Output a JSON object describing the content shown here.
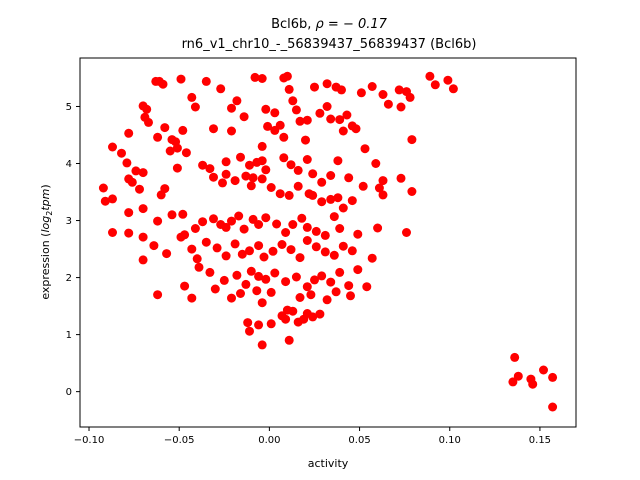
{
  "chart_data": {
    "type": "scatter",
    "title_line1_prefix": "Bcl6b, ",
    "title_line1_rho": "ρ = − 0.17",
    "title_line2": "rn6_v1_chr10_-_56839437_56839437 (Bcl6b)",
    "xlabel": "activity",
    "ylabel_prefix": "expression (",
    "ylabel_math": "log",
    "ylabel_sub": "2",
    "ylabel_math2": "tpm",
    "ylabel_suffix": ")",
    "xlim": [
      -0.105,
      0.17
    ],
    "ylim": [
      -0.62,
      5.85
    ],
    "x_ticks": [
      -0.1,
      -0.05,
      0.0,
      0.05,
      0.1,
      0.15
    ],
    "x_tick_labels": [
      "−0.10",
      "−0.05",
      "0.00",
      "0.05",
      "0.10",
      "0.15"
    ],
    "y_ticks": [
      0,
      1,
      2,
      3,
      4,
      5
    ],
    "y_tick_labels": [
      "0",
      "1",
      "2",
      "3",
      "4",
      "5"
    ],
    "grid": false,
    "marker_color": "#ff0000",
    "points": [
      [
        -0.063,
        5.44
      ],
      [
        -0.061,
        5.44
      ],
      [
        -0.059,
        5.39
      ],
      [
        -0.049,
        5.48
      ],
      [
        -0.035,
        5.44
      ],
      [
        -0.027,
        5.31
      ],
      [
        -0.018,
        5.1
      ],
      [
        -0.008,
        5.51
      ],
      [
        -0.004,
        5.49
      ],
      [
        0.01,
        5.53
      ],
      [
        0.008,
        5.5
      ],
      [
        0.025,
        5.34
      ],
      [
        0.032,
        5.4
      ],
      [
        0.037,
        5.34
      ],
      [
        0.04,
        5.29
      ],
      [
        0.051,
        5.24
      ],
      [
        0.057,
        5.35
      ],
      [
        0.063,
        5.21
      ],
      [
        0.072,
        5.29
      ],
      [
        0.076,
        5.26
      ],
      [
        0.078,
        5.16
      ],
      [
        0.089,
        5.53
      ],
      [
        0.092,
        5.38
      ],
      [
        0.099,
        5.46
      ],
      [
        0.102,
        5.31
      ],
      [
        -0.07,
        5.01
      ],
      [
        -0.068,
        4.95
      ],
      [
        -0.069,
        4.81
      ],
      [
        -0.067,
        4.72
      ],
      [
        -0.058,
        4.63
      ],
      [
        -0.043,
        5.16
      ],
      [
        -0.041,
        4.99
      ],
      [
        -0.021,
        4.97
      ],
      [
        -0.014,
        4.82
      ],
      [
        -0.002,
        4.95
      ],
      [
        0.003,
        4.89
      ],
      [
        0.006,
        4.67
      ],
      [
        0.011,
        5.3
      ],
      [
        0.013,
        5.1
      ],
      [
        0.015,
        4.94
      ],
      [
        0.017,
        4.74
      ],
      [
        0.021,
        4.76
      ],
      [
        0.028,
        4.88
      ],
      [
        0.032,
        5.0
      ],
      [
        0.034,
        4.78
      ],
      [
        0.039,
        4.77
      ],
      [
        0.043,
        4.85
      ],
      [
        0.046,
        4.66
      ],
      [
        0.066,
        5.04
      ],
      [
        0.073,
        4.99
      ],
      [
        -0.078,
        4.53
      ],
      [
        -0.062,
        4.46
      ],
      [
        -0.054,
        4.42
      ],
      [
        -0.052,
        4.38
      ],
      [
        -0.048,
        4.58
      ],
      [
        -0.031,
        4.61
      ],
      [
        -0.021,
        4.57
      ],
      [
        -0.004,
        4.3
      ],
      [
        -0.001,
        4.65
      ],
      [
        0.008,
        4.46
      ],
      [
        0.003,
        4.58
      ],
      [
        0.02,
        4.41
      ],
      [
        0.041,
        4.57
      ],
      [
        0.048,
        4.61
      ],
      [
        0.053,
        4.26
      ],
      [
        0.079,
        4.42
      ],
      [
        -0.087,
        4.29
      ],
      [
        -0.082,
        4.18
      ],
      [
        -0.079,
        4.01
      ],
      [
        -0.074,
        3.87
      ],
      [
        -0.07,
        3.84
      ],
      [
        -0.076,
        3.67
      ],
      [
        -0.055,
        4.22
      ],
      [
        -0.051,
        4.27
      ],
      [
        -0.051,
        3.92
      ],
      [
        -0.046,
        4.19
      ],
      [
        -0.037,
        3.97
      ],
      [
        -0.033,
        3.91
      ],
      [
        -0.024,
        4.03
      ],
      [
        -0.016,
        4.11
      ],
      [
        -0.011,
        3.97
      ],
      [
        -0.007,
        4.02
      ],
      [
        -0.004,
        4.05
      ],
      [
        -0.002,
        3.89
      ],
      [
        0.008,
        4.1
      ],
      [
        0.012,
        3.98
      ],
      [
        0.016,
        3.88
      ],
      [
        0.021,
        4.07
      ],
      [
        0.024,
        3.82
      ],
      [
        0.029,
        3.67
      ],
      [
        0.034,
        3.79
      ],
      [
        0.038,
        4.05
      ],
      [
        0.044,
        3.75
      ],
      [
        0.059,
        4.0
      ],
      [
        0.063,
        3.7
      ],
      [
        0.073,
        3.74
      ],
      [
        -0.092,
        3.57
      ],
      [
        -0.091,
        3.34
      ],
      [
        -0.087,
        3.38
      ],
      [
        -0.078,
        3.73
      ],
      [
        -0.078,
        3.14
      ],
      [
        -0.072,
        3.55
      ],
      [
        -0.07,
        3.21
      ],
      [
        -0.06,
        3.45
      ],
      [
        -0.058,
        3.56
      ],
      [
        -0.054,
        3.1
      ],
      [
        -0.048,
        3.11
      ],
      [
        -0.031,
        3.76
      ],
      [
        -0.026,
        3.66
      ],
      [
        -0.024,
        3.81
      ],
      [
        -0.019,
        3.7
      ],
      [
        -0.013,
        3.78
      ],
      [
        -0.01,
        3.61
      ],
      [
        -0.009,
        3.75
      ],
      [
        -0.004,
        3.73
      ],
      [
        0.001,
        3.58
      ],
      [
        0.006,
        3.47
      ],
      [
        0.011,
        3.44
      ],
      [
        0.016,
        3.6
      ],
      [
        0.022,
        3.47
      ],
      [
        0.024,
        3.44
      ],
      [
        0.029,
        3.33
      ],
      [
        0.034,
        3.37
      ],
      [
        0.038,
        3.4
      ],
      [
        0.041,
        3.22
      ],
      [
        0.046,
        3.35
      ],
      [
        0.052,
        3.6
      ],
      [
        0.061,
        3.57
      ],
      [
        0.063,
        3.45
      ],
      [
        0.079,
        3.51
      ],
      [
        -0.087,
        2.79
      ],
      [
        -0.078,
        2.78
      ],
      [
        -0.07,
        2.71
      ],
      [
        -0.064,
        2.56
      ],
      [
        -0.062,
        2.99
      ],
      [
        -0.049,
        2.71
      ],
      [
        -0.047,
        2.75
      ],
      [
        -0.041,
        2.86
      ],
      [
        -0.037,
        2.98
      ],
      [
        -0.031,
        3.03
      ],
      [
        -0.027,
        2.93
      ],
      [
        -0.024,
        2.88
      ],
      [
        -0.021,
        2.99
      ],
      [
        -0.017,
        3.08
      ],
      [
        -0.014,
        2.85
      ],
      [
        -0.009,
        3.02
      ],
      [
        -0.006,
        2.93
      ],
      [
        -0.002,
        3.05
      ],
      [
        0.004,
        2.94
      ],
      [
        0.009,
        2.79
      ],
      [
        0.013,
        2.93
      ],
      [
        0.018,
        3.04
      ],
      [
        0.021,
        2.88
      ],
      [
        0.026,
        2.81
      ],
      [
        0.031,
        2.74
      ],
      [
        0.036,
        3.07
      ],
      [
        0.039,
        2.86
      ],
      [
        0.049,
        2.76
      ],
      [
        0.06,
        2.87
      ],
      [
        0.076,
        2.79
      ],
      [
        -0.07,
        2.31
      ],
      [
        -0.057,
        2.42
      ],
      [
        -0.043,
        2.5
      ],
      [
        -0.04,
        2.33
      ],
      [
        -0.035,
        2.62
      ],
      [
        -0.029,
        2.52
      ],
      [
        -0.024,
        2.38
      ],
      [
        -0.019,
        2.59
      ],
      [
        -0.015,
        2.41
      ],
      [
        -0.011,
        2.47
      ],
      [
        -0.006,
        2.56
      ],
      [
        -0.003,
        2.36
      ],
      [
        0.002,
        2.46
      ],
      [
        0.007,
        2.58
      ],
      [
        0.012,
        2.49
      ],
      [
        0.017,
        2.35
      ],
      [
        0.021,
        2.65
      ],
      [
        0.026,
        2.54
      ],
      [
        0.031,
        2.45
      ],
      [
        0.036,
        2.39
      ],
      [
        0.041,
        2.55
      ],
      [
        0.046,
        2.47
      ],
      [
        0.057,
        2.34
      ],
      [
        -0.039,
        2.18
      ],
      [
        -0.033,
        2.09
      ],
      [
        -0.025,
        1.95
      ],
      [
        -0.018,
        2.04
      ],
      [
        -0.013,
        1.88
      ],
      [
        -0.01,
        2.11
      ],
      [
        -0.006,
        2.02
      ],
      [
        -0.002,
        1.97
      ],
      [
        0.003,
        2.08
      ],
      [
        0.009,
        1.93
      ],
      [
        0.015,
        2.01
      ],
      [
        0.021,
        1.84
      ],
      [
        0.025,
        1.96
      ],
      [
        0.029,
        2.03
      ],
      [
        0.034,
        1.92
      ],
      [
        0.039,
        2.09
      ],
      [
        0.044,
        1.86
      ],
      [
        0.049,
        2.14
      ],
      [
        0.054,
        1.84
      ],
      [
        -0.062,
        1.7
      ],
      [
        -0.047,
        1.85
      ],
      [
        -0.03,
        1.8
      ],
      [
        -0.021,
        1.64
      ],
      [
        -0.016,
        1.72
      ],
      [
        -0.007,
        1.77
      ],
      [
        -0.004,
        1.56
      ],
      [
        0.001,
        1.74
      ],
      [
        0.01,
        1.43
      ],
      [
        0.017,
        1.65
      ],
      [
        0.023,
        1.7
      ],
      [
        0.032,
        1.61
      ],
      [
        0.037,
        1.75
      ],
      [
        0.045,
        1.68
      ],
      [
        -0.043,
        1.64
      ],
      [
        -0.012,
        1.21
      ],
      [
        -0.011,
        1.06
      ],
      [
        -0.006,
        1.17
      ],
      [
        -0.004,
        0.82
      ],
      [
        0.001,
        1.19
      ],
      [
        0.007,
        1.33
      ],
      [
        0.009,
        1.27
      ],
      [
        0.013,
        1.41
      ],
      [
        0.016,
        1.22
      ],
      [
        0.019,
        1.27
      ],
      [
        0.021,
        1.37
      ],
      [
        0.024,
        1.31
      ],
      [
        0.028,
        1.36
      ],
      [
        0.011,
        0.9
      ],
      [
        0.135,
        0.17
      ],
      [
        0.136,
        0.6
      ],
      [
        0.138,
        0.27
      ],
      [
        0.145,
        0.22
      ],
      [
        0.146,
        0.13
      ],
      [
        0.152,
        0.38
      ],
      [
        0.157,
        0.25
      ],
      [
        0.157,
        -0.27
      ]
    ]
  }
}
